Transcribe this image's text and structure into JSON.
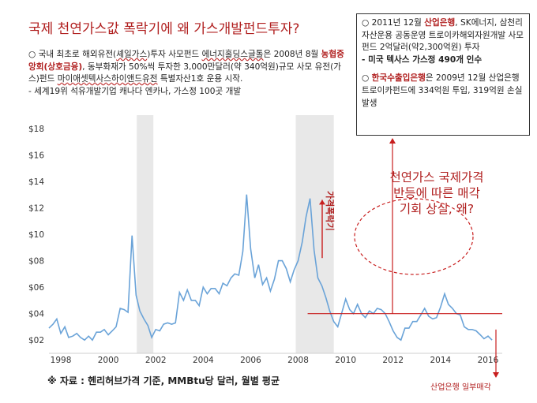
{
  "header": {
    "title": "국제 천연가스값 폭락기에 왜 가스개발펀드투자?"
  },
  "description": {
    "line1_prefix": "○ 국내 최초로 해외유전(",
    "line1_underlined_a": "셰일가스",
    "line1_mid": ")투자 사모펀드 ",
    "line1_underlined_b": "에너지홀딩스글톨",
    "line1_suffix": "은 2008년 8월 ",
    "line1_red": "농협중앙회(상호금융)",
    "line1_end": ", 동부화재가 50%씩 투자한 3,000만달러(약 340억원)규모 사모 유전(가스)펀드 ",
    "line1_underlined_c": "마이애셋텍사스하이앤드유전",
    "line1_tail": " 특별자산1호 운용 시작.",
    "line2": "- 세계19위 석유개발기업 캐나다 엔카나, 가스정 100곳 개발"
  },
  "infobox": {
    "p1_prefix": "○ 2011년 12월 ",
    "p1_red": "산업은행",
    "p1_suffix": ", SK에너지, 삼천리자산운용 공동운영 트로이카해외자원개발 사모펀드 2억달러(약2,300억원) 투자",
    "p1_line2": "- 미국 텍사스 가스정 490개 인수",
    "p2_prefix": "○ ",
    "p2_red": "한국수출입은행",
    "p2_suffix": "은 2009년 12월 산업은행 트로이카펀드에 334억원 투입, 319억원 손실 발생"
  },
  "callout": {
    "line1": "천연가스 국제가격",
    "line2": "반등에 따른 매각",
    "line3": "기회 상실, 왜?"
  },
  "annotations": {
    "plunge_label": "가격폭락기",
    "sell_label": "산업은행 일부매각"
  },
  "source": "※ 자료 : 헨리허브가격 기준, MMBtu당 달러, 월별 평균",
  "colors": {
    "line": "#6aa3d8",
    "shade": "#e8e8e8",
    "accent_red": "#b01e1e",
    "arrow_red": "#c81e1e"
  },
  "chart_data": {
    "type": "line",
    "series": [
      {
        "x": [
          1997.5,
          1997.67,
          1997.83,
          1998.0,
          1998.17,
          1998.33,
          1998.5,
          1998.67,
          1998.83,
          1999.0,
          1999.17,
          1999.33,
          1999.5,
          1999.67,
          1999.83,
          2000.0,
          2000.17,
          2000.33,
          2000.5,
          2000.67,
          2000.83,
          2001.0,
          2001.17,
          2001.33,
          2001.5,
          2001.67,
          2001.83,
          2002.0,
          2002.17,
          2002.33,
          2002.5,
          2002.67,
          2002.83,
          2003.0,
          2003.17,
          2003.33,
          2003.5,
          2003.67,
          2003.83,
          2004.0,
          2004.17,
          2004.33,
          2004.5,
          2004.67,
          2004.83,
          2005.0,
          2005.17,
          2005.33,
          2005.5,
          2005.67,
          2005.83,
          2006.0,
          2006.17,
          2006.33,
          2006.5,
          2006.67,
          2006.83,
          2007.0,
          2007.17,
          2007.33,
          2007.5,
          2007.67,
          2007.83,
          2008.0,
          2008.17,
          2008.33,
          2008.5,
          2008.67,
          2008.83,
          2009.0,
          2009.17,
          2009.33,
          2009.5,
          2009.67,
          2009.83,
          2010.0,
          2010.17,
          2010.33,
          2010.5,
          2010.67,
          2010.83,
          2011.0,
          2011.17,
          2011.33,
          2011.5,
          2011.67,
          2011.83,
          2012.0,
          2012.17,
          2012.33,
          2012.5,
          2012.67,
          2012.83,
          2013.0,
          2013.17,
          2013.33,
          2013.5,
          2013.67,
          2013.83,
          2014.0,
          2014.17,
          2014.33,
          2014.5,
          2014.67,
          2014.83,
          2015.0,
          2015.17,
          2015.33,
          2015.5,
          2015.67,
          2015.83,
          2016.0,
          2016.17
        ],
        "y": [
          2.9,
          3.2,
          3.6,
          2.5,
          3.0,
          2.2,
          2.3,
          2.5,
          2.2,
          2.0,
          2.3,
          2.0,
          2.6,
          2.6,
          2.8,
          2.4,
          2.7,
          3.0,
          4.4,
          4.3,
          4.1,
          9.9,
          5.4,
          4.2,
          3.6,
          3.1,
          2.2,
          2.8,
          2.7,
          3.2,
          3.3,
          3.2,
          3.3,
          5.6,
          5.0,
          5.8,
          5.0,
          5.0,
          4.6,
          6.0,
          5.5,
          5.9,
          5.9,
          5.5,
          6.3,
          6.1,
          6.7,
          7.0,
          6.9,
          8.7,
          13.0,
          8.9,
          6.7,
          7.7,
          6.2,
          6.7,
          5.7,
          6.6,
          8.0,
          8.0,
          7.4,
          6.4,
          7.3,
          8.0,
          9.4,
          11.3,
          12.7,
          8.8,
          6.7,
          6.1,
          5.2,
          4.2,
          3.4,
          3.0,
          4.0,
          5.1,
          4.3,
          4.0,
          4.7,
          4.0,
          3.7,
          4.2,
          4.0,
          4.4,
          4.3,
          4.0,
          3.4,
          2.7,
          2.2,
          2.0,
          2.9,
          2.9,
          3.4,
          3.4,
          3.9,
          4.4,
          3.8,
          3.6,
          3.7,
          4.5,
          5.5,
          4.7,
          4.4,
          4.0,
          3.9,
          3.0,
          2.8,
          2.8,
          2.7,
          2.4,
          2.1,
          2.3,
          2.0
        ]
      }
    ],
    "xlim": [
      1997.5,
      2016.6
    ],
    "ylim": [
      1,
      19
    ],
    "y_ticks": [
      "$02",
      "$04",
      "$06",
      "$08",
      "$10",
      "$12",
      "$14",
      "$16",
      "$18"
    ],
    "y_tick_values": [
      2,
      4,
      6,
      8,
      10,
      12,
      14,
      16,
      18
    ],
    "x_ticks": [
      "1998",
      "2000",
      "2002",
      "2004",
      "2006",
      "2008",
      "2010",
      "2012",
      "2014",
      "2016"
    ],
    "x_tick_values": [
      1998,
      2000,
      2002,
      2004,
      2006,
      2008,
      2010,
      2012,
      2014,
      2016
    ],
    "shaded_periods": [
      [
        2001.2,
        2001.9
      ],
      [
        2007.9,
        2009.5
      ]
    ],
    "reference_level": 4.0,
    "grid": false
  }
}
